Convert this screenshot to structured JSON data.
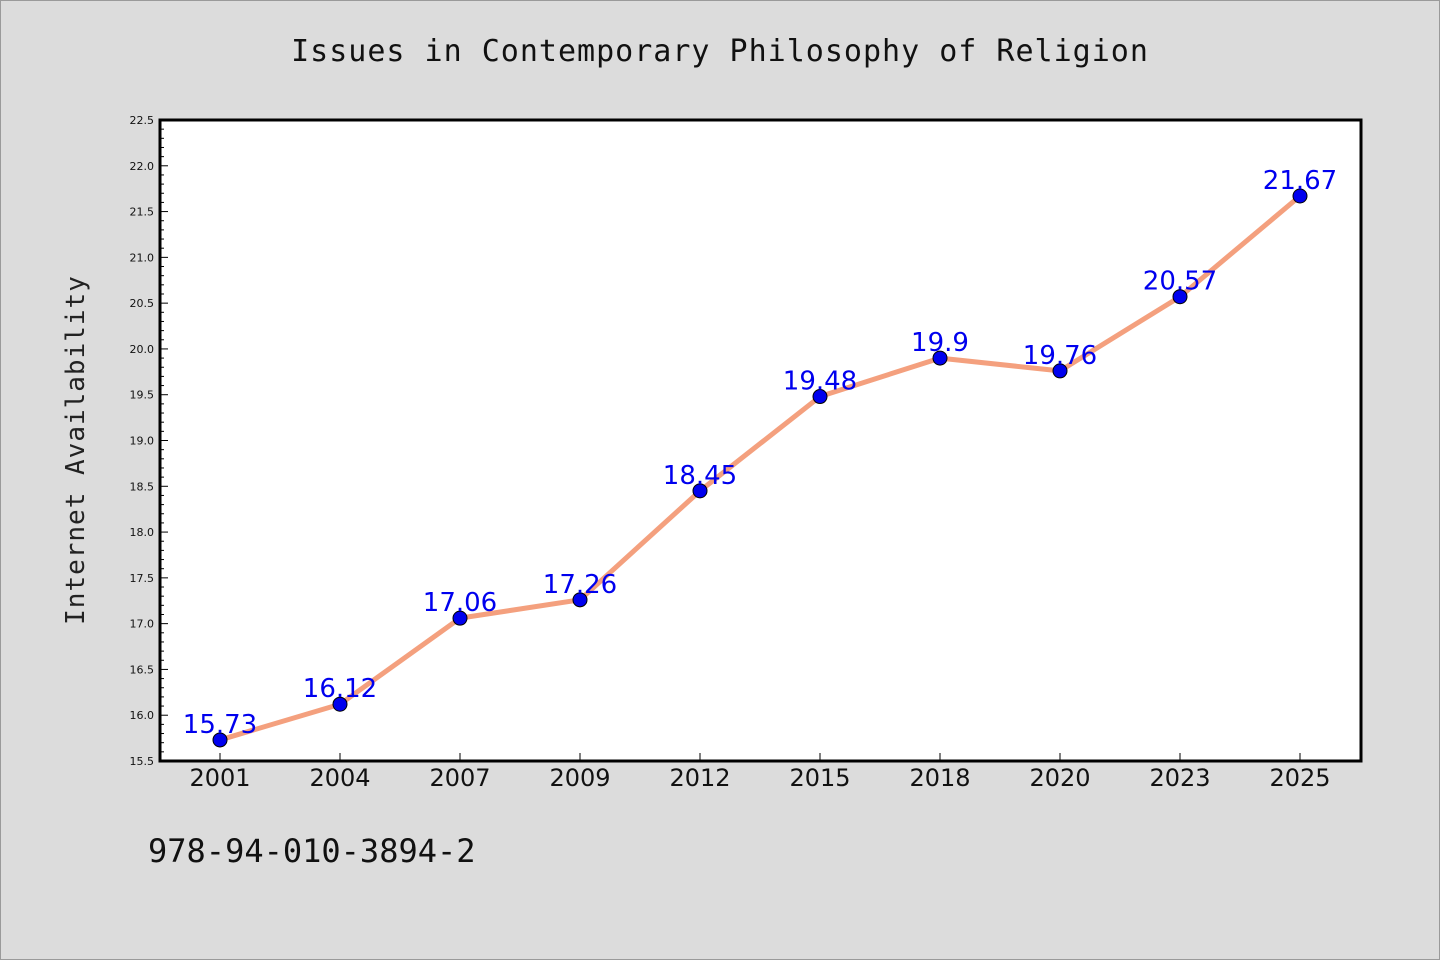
{
  "chart_data": {
    "type": "line",
    "title": "Issues in Contemporary Philosophy of Religion",
    "xlabel": "",
    "ylabel": "Internet Availability",
    "categories": [
      "2001",
      "2004",
      "2007",
      "2009",
      "2012",
      "2015",
      "2018",
      "2020",
      "2023",
      "2025"
    ],
    "series": [
      {
        "values": [
          15.73,
          16.12,
          17.06,
          17.26,
          18.45,
          19.48,
          19.9,
          19.76,
          20.57,
          21.67
        ]
      }
    ],
    "data_labels": [
      "15.73",
      "16.12",
      "17.06",
      "17.26",
      "18.45",
      "19.48",
      "19.9",
      "19.76",
      "20.57",
      "21.67"
    ],
    "ylim": [
      15.5,
      22.5
    ],
    "yticks": [
      "15.5",
      "16.0",
      "16.5",
      "17.0",
      "17.5",
      "18.0",
      "18.5",
      "19.0",
      "19.5",
      "20.0",
      "20.5",
      "21.0",
      "21.5",
      "22.0",
      "22.5"
    ],
    "grid": false,
    "line_color": "#f4a07e",
    "marker_color": "#0000ee",
    "label_color": "#0000ee"
  },
  "footer": {
    "isbn": "978-94-010-3894-2"
  }
}
